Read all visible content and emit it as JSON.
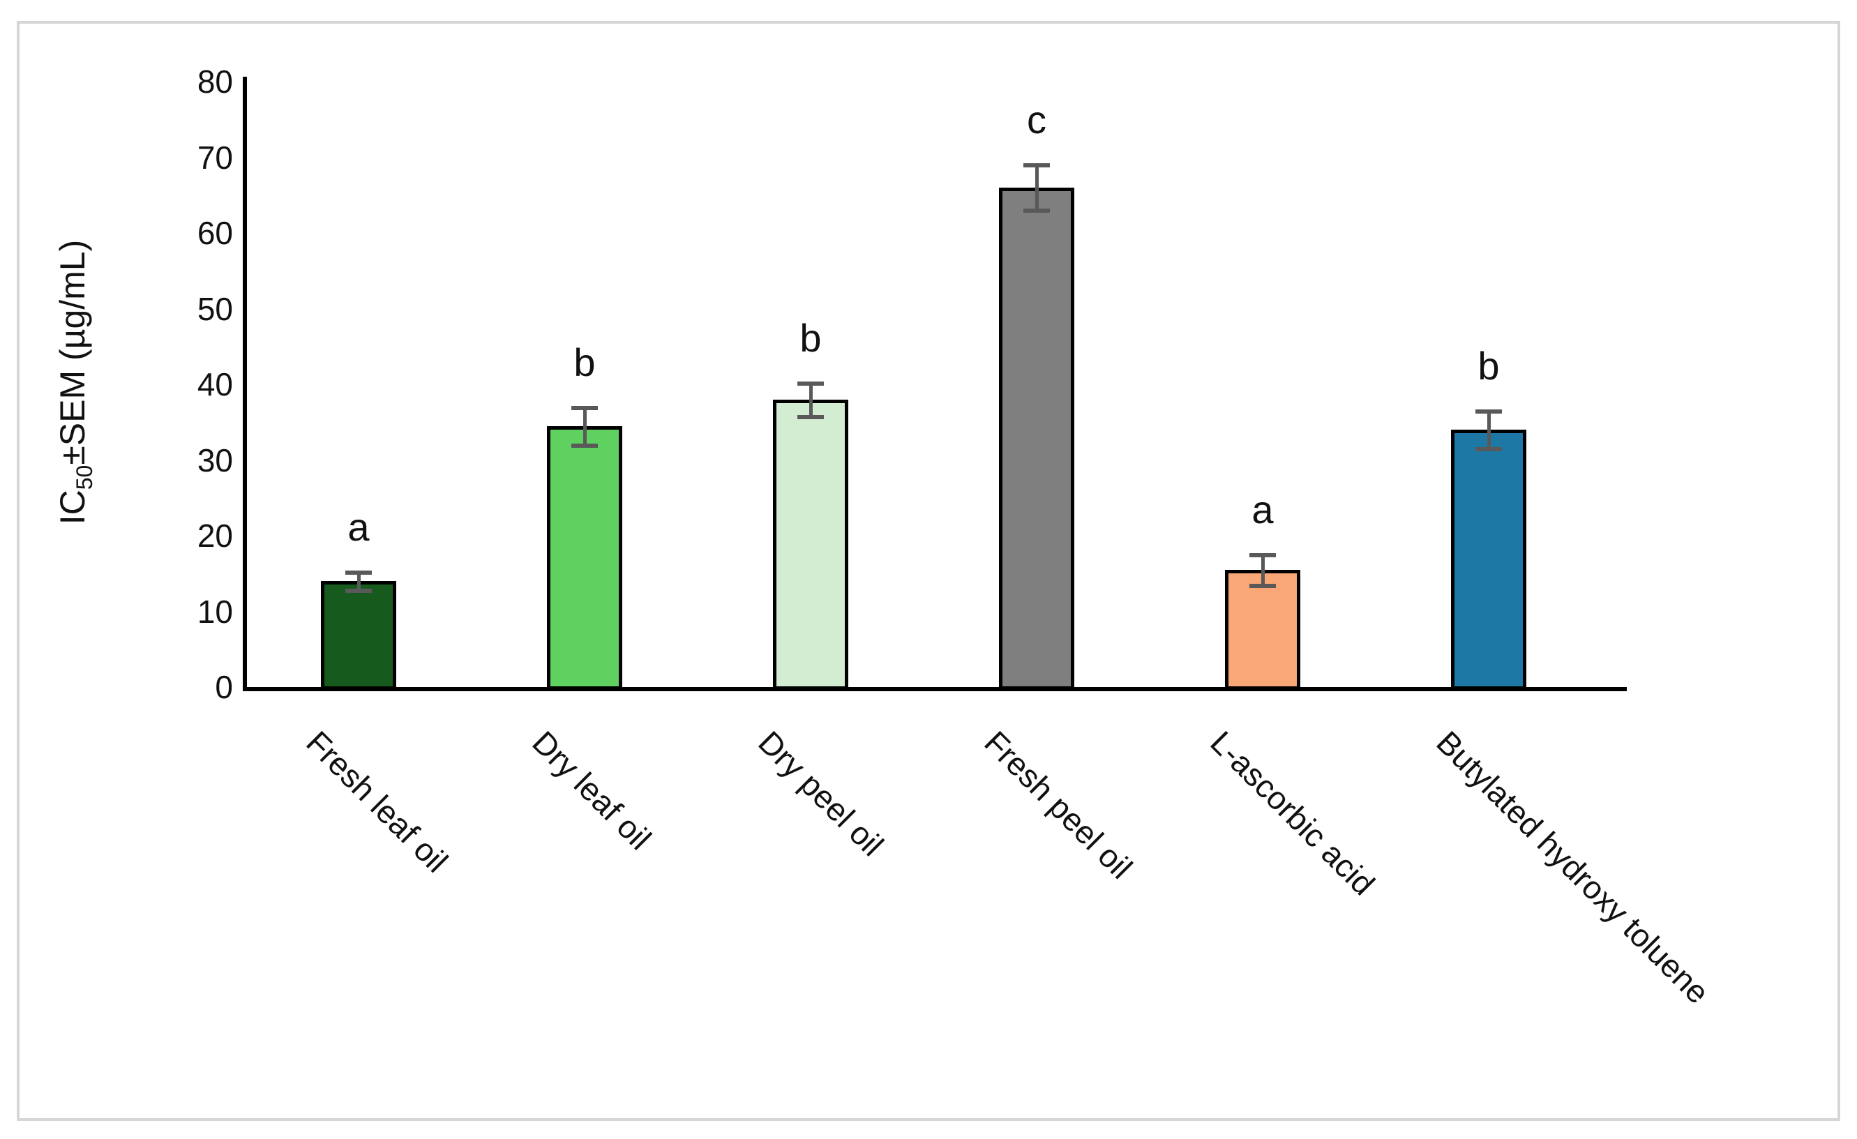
{
  "figure": {
    "background": "#ffffff",
    "frame_border_color": "#d6d6d6"
  },
  "y_axis": {
    "label_prefix": "IC",
    "label_subscript": "50",
    "label_suffix": "±SEM (µg/mL)",
    "ticks": [
      "0",
      "10",
      "20",
      "30",
      "40",
      "50",
      "60",
      "70",
      "80"
    ],
    "min": 0,
    "max": 80
  },
  "chart_data": {
    "type": "bar",
    "title": "",
    "xlabel": "",
    "ylabel": "IC50±SEM (µg/mL)",
    "ylim": [
      0,
      80
    ],
    "grid": false,
    "legend_position": "none",
    "categories": [
      "Fresh leaf oil",
      "Dry leaf oil",
      "Dry peel oil",
      "Fresh peel oil",
      "L-ascorbic acid",
      "Butylated hydroxy toluene"
    ],
    "values": [
      14,
      34.5,
      38,
      66,
      15.5,
      34
    ],
    "errors": [
      1.2,
      2.5,
      2.2,
      3,
      2,
      2.5
    ],
    "sig_letters": [
      "a",
      "b",
      "b",
      "c",
      "a",
      "b"
    ],
    "bar_colors": [
      "#165a1d",
      "#5ed160",
      "#d3edd2",
      "#7f7f7f",
      "#f9a776",
      "#1e78a6"
    ],
    "bar_border_color": "#000000",
    "error_bar_color": "#595959",
    "axis_color": "#000000"
  }
}
